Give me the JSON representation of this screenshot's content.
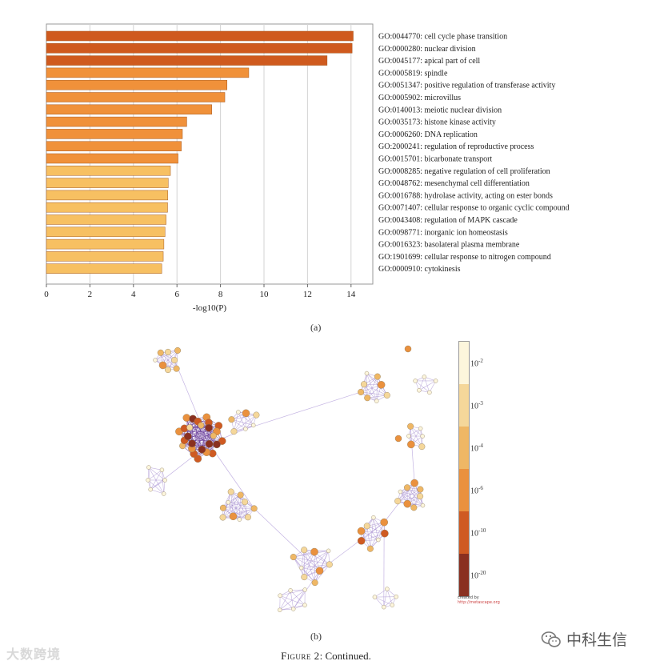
{
  "chart_data": [
    {
      "type": "bar",
      "orientation": "horizontal",
      "xlabel": "-log10(P)",
      "xlim": [
        0,
        15
      ],
      "xticks": [
        0,
        2,
        4,
        6,
        8,
        10,
        12,
        14
      ],
      "grid": true,
      "categories": [
        "GO:0044770: cell cycle phase transition",
        "GO:0000280: nuclear division",
        "GO:0045177: apical part of cell",
        "GO:0005819: spindle",
        "GO:0051347: positive regulation of transferase activity",
        "GO:0005902: microvillus",
        "GO:0140013: meiotic nuclear division",
        "GO:0035173: histone kinase activity",
        "GO:0006260: DNA replication",
        "GO:2000241: regulation of reproductive process",
        "GO:0015701: bicarbonate transport",
        "GO:0008285: negative regulation of cell proliferation",
        "GO:0048762: mesenchymal cell differentiation",
        "GO:0016788: hydrolase activity, acting on ester bonds",
        "GO:0071407: cellular response to organic cyclic compound",
        "GO:0043408: regulation of MAPK cascade",
        "GO:0098771: inorganic ion homeostasis",
        "GO:0016323: basolateral plasma membrane",
        "GO:1901699: cellular response to nitrogen compound",
        "GO:0000910: cytokinesis"
      ],
      "values": [
        14.1,
        14.05,
        12.9,
        9.3,
        8.3,
        8.2,
        7.6,
        6.45,
        6.25,
        6.2,
        6.05,
        5.7,
        5.6,
        5.58,
        5.57,
        5.5,
        5.45,
        5.4,
        5.37,
        5.3
      ],
      "colors": [
        "#cf5a1e",
        "#cf5a1e",
        "#cf5a1e",
        "#f0913a",
        "#f0913a",
        "#f0913a",
        "#f0913a",
        "#f0913a",
        "#f0913a",
        "#f0913a",
        "#f0913a",
        "#f7c062",
        "#f7c062",
        "#f7c062",
        "#f7c062",
        "#f7c062",
        "#f7c062",
        "#f7c062",
        "#f7c062",
        "#f7c062"
      ]
    },
    {
      "type": "network",
      "colorbar": {
        "labels": [
          {
            "base": "10",
            "exp": "-2"
          },
          {
            "base": "10",
            "exp": "-3"
          },
          {
            "base": "10",
            "exp": "-4"
          },
          {
            "base": "10",
            "exp": "-6"
          },
          {
            "base": "10",
            "exp": "-10"
          },
          {
            "base": "10",
            "exp": "-20"
          }
        ],
        "colors": [
          "#fdf6dc",
          "#f5d79a",
          "#efb765",
          "#ea913e",
          "#cf5a22",
          "#8a3020"
        ]
      },
      "credit_line1": "created by",
      "credit_line2": "http://metascape.org"
    }
  ],
  "panel_a_label": "(a)",
  "panel_b_label": "(b)",
  "caption_prefix": "Figure 2",
  "caption_suffix": ": Continued.",
  "watermark_left": "大数跨境",
  "watermark_right": "中科生信"
}
